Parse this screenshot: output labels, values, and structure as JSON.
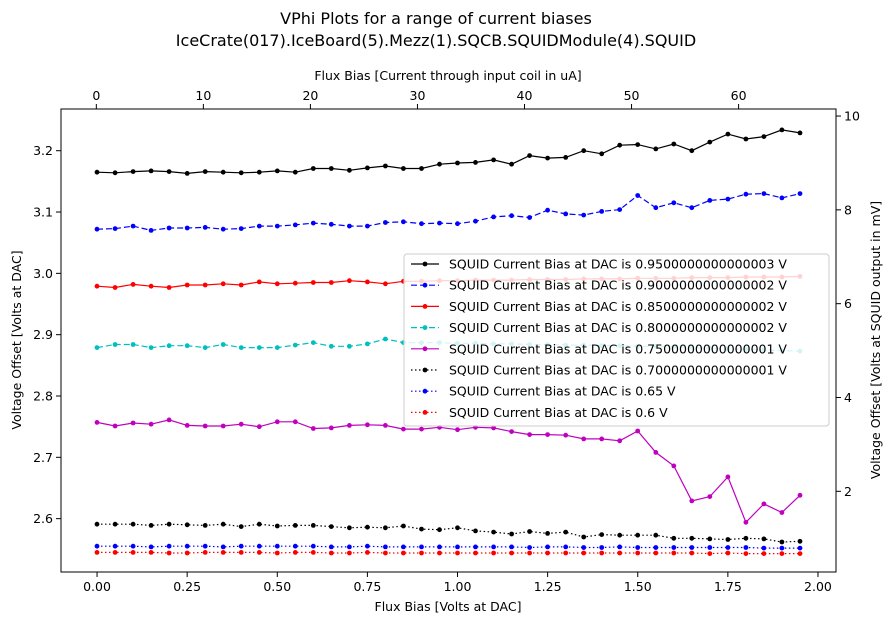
{
  "chart_data": {
    "type": "line",
    "title": "VPhi Plots for a range of current biases",
    "subtitle": "IceCrate(017).IceBoard(5).Mezz(1).SQCB.SQUIDModule(4).SQUID",
    "xlabel": "Flux Bias [Volts at DAC]",
    "ylabel": "Voltage Offset [Volts at DAC]",
    "x2label": "Flux Bias [Current through input coil in uA]",
    "y2label": "Voltage Offset [Volts at SQUID output in mV]",
    "xlim": [
      -0.1,
      2.05
    ],
    "ylim": [
      2.513,
      3.268
    ],
    "x2lim": [
      -3.3,
      69.1
    ],
    "y2lim": [
      0.28,
      10.15
    ],
    "xticks": [
      "0.00",
      "0.25",
      "0.50",
      "0.75",
      "1.00",
      "1.25",
      "1.50",
      "1.75",
      "2.00"
    ],
    "yticks": [
      "2.6",
      "2.7",
      "2.8",
      "2.9",
      "3.0",
      "3.1",
      "3.2"
    ],
    "x2ticks": [
      "0",
      "10",
      "20",
      "30",
      "40",
      "50",
      "60"
    ],
    "y2ticks": [
      "2",
      "4",
      "6",
      "8",
      "10"
    ],
    "grid": false,
    "legend_position": "center-right",
    "x": [
      0.0,
      0.05,
      0.1,
      0.15,
      0.2,
      0.25,
      0.3,
      0.35,
      0.4,
      0.45,
      0.5,
      0.55,
      0.6,
      0.65,
      0.7,
      0.75,
      0.8,
      0.85,
      0.9,
      0.95,
      1.0,
      1.05,
      1.1,
      1.15,
      1.2,
      1.25,
      1.3,
      1.35,
      1.4,
      1.45,
      1.5,
      1.55,
      1.6,
      1.65,
      1.7,
      1.75,
      1.8,
      1.85,
      1.9,
      1.95
    ],
    "series": [
      {
        "name": "SQUID Current Bias at DAC is 0.9500000000000003 V",
        "color": "#000000",
        "linestyle": "solid",
        "values": [
          3.165,
          3.164,
          3.166,
          3.167,
          3.166,
          3.163,
          3.166,
          3.165,
          3.164,
          3.165,
          3.167,
          3.165,
          3.171,
          3.171,
          3.168,
          3.172,
          3.175,
          3.171,
          3.171,
          3.178,
          3.18,
          3.181,
          3.185,
          3.178,
          3.192,
          3.188,
          3.189,
          3.2,
          3.195,
          3.209,
          3.21,
          3.203,
          3.211,
          3.2,
          3.214,
          3.227,
          3.219,
          3.223,
          3.234,
          3.229
        ]
      },
      {
        "name": "SQUID Current Bias at DAC is 0.9000000000000002 V",
        "color": "#0000ff",
        "linestyle": "dashed",
        "values": [
          3.072,
          3.073,
          3.077,
          3.07,
          3.074,
          3.074,
          3.075,
          3.072,
          3.073,
          3.077,
          3.077,
          3.079,
          3.082,
          3.08,
          3.077,
          3.077,
          3.083,
          3.084,
          3.081,
          3.082,
          3.081,
          3.085,
          3.092,
          3.094,
          3.091,
          3.103,
          3.097,
          3.095,
          3.101,
          3.104,
          3.127,
          3.107,
          3.115,
          3.107,
          3.119,
          3.121,
          3.129,
          3.13,
          3.123,
          3.13
        ]
      },
      {
        "name": "SQUID Current Bias at DAC is 0.8500000000000002 V",
        "color": "#ff0000",
        "linestyle": "solid",
        "values": [
          2.979,
          2.977,
          2.982,
          2.979,
          2.977,
          2.981,
          2.981,
          2.983,
          2.981,
          2.986,
          2.983,
          2.984,
          2.985,
          2.985,
          2.988,
          2.986,
          2.983,
          2.987,
          2.987,
          2.988,
          2.988,
          2.989,
          2.989,
          2.989,
          2.99,
          2.99,
          2.99,
          2.991,
          2.991,
          2.991,
          2.992,
          2.992,
          2.992,
          2.993,
          2.993,
          2.993,
          2.994,
          2.994,
          2.994,
          2.995
        ]
      },
      {
        "name": "SQUID Current Bias at DAC is 0.8000000000000002 V",
        "color": "#00bfbf",
        "linestyle": "dashed",
        "values": [
          2.879,
          2.884,
          2.884,
          2.879,
          2.882,
          2.882,
          2.879,
          2.884,
          2.879,
          2.879,
          2.879,
          2.883,
          2.887,
          2.881,
          2.881,
          2.885,
          2.893,
          2.887,
          2.887,
          2.887,
          2.886,
          2.886,
          2.885,
          2.885,
          2.884,
          2.884,
          2.883,
          2.883,
          2.882,
          2.882,
          2.881,
          2.881,
          2.88,
          2.879,
          2.878,
          2.877,
          2.876,
          2.875,
          2.874,
          2.873
        ]
      },
      {
        "name": "SQUID Current Bias at DAC is 0.7500000000000001 V",
        "color": "#bf00bf",
        "linestyle": "solid",
        "values": [
          2.757,
          2.751,
          2.756,
          2.754,
          2.761,
          2.752,
          2.751,
          2.751,
          2.754,
          2.75,
          2.758,
          2.758,
          2.747,
          2.748,
          2.752,
          2.753,
          2.752,
          2.746,
          2.746,
          2.749,
          2.745,
          2.749,
          2.748,
          2.742,
          2.737,
          2.737,
          2.736,
          2.73,
          2.73,
          2.727,
          2.743,
          2.708,
          2.686,
          2.629,
          2.636,
          2.668,
          2.594,
          2.624,
          2.61,
          2.638
        ]
      },
      {
        "name": "SQUID Current Bias at DAC is 0.7000000000000001 V",
        "color": "#000000",
        "linestyle": "dotted",
        "values": [
          2.591,
          2.591,
          2.591,
          2.589,
          2.591,
          2.59,
          2.589,
          2.591,
          2.587,
          2.591,
          2.588,
          2.589,
          2.589,
          2.587,
          2.585,
          2.586,
          2.585,
          2.588,
          2.583,
          2.582,
          2.585,
          2.58,
          2.578,
          2.575,
          2.579,
          2.576,
          2.578,
          2.57,
          2.574,
          2.573,
          2.573,
          2.573,
          2.568,
          2.568,
          2.567,
          2.566,
          2.568,
          2.567,
          2.562,
          2.563
        ]
      },
      {
        "name": "SQUID Current Bias at DAC is 0.65 V",
        "color": "#0000ff",
        "linestyle": "dotted",
        "values": [
          2.555,
          2.555,
          2.555,
          2.554,
          2.555,
          2.555,
          2.555,
          2.554,
          2.555,
          2.555,
          2.555,
          2.555,
          2.555,
          2.554,
          2.554,
          2.555,
          2.554,
          2.554,
          2.554,
          2.554,
          2.554,
          2.554,
          2.554,
          2.554,
          2.553,
          2.554,
          2.554,
          2.553,
          2.553,
          2.554,
          2.553,
          2.553,
          2.553,
          2.553,
          2.553,
          2.553,
          2.553,
          2.552,
          2.552,
          2.552
        ]
      },
      {
        "name": "SQUID Current Bias at DAC is 0.6 V",
        "color": "#ff0000",
        "linestyle": "dotted",
        "values": [
          2.545,
          2.545,
          2.545,
          2.545,
          2.544,
          2.544,
          2.545,
          2.545,
          2.545,
          2.545,
          2.544,
          2.545,
          2.545,
          2.544,
          2.544,
          2.545,
          2.544,
          2.544,
          2.544,
          2.544,
          2.544,
          2.544,
          2.544,
          2.544,
          2.544,
          2.544,
          2.544,
          2.544,
          2.544,
          2.544,
          2.544,
          2.544,
          2.544,
          2.544,
          2.543,
          2.544,
          2.543,
          2.543,
          2.543,
          2.543
        ]
      }
    ]
  }
}
